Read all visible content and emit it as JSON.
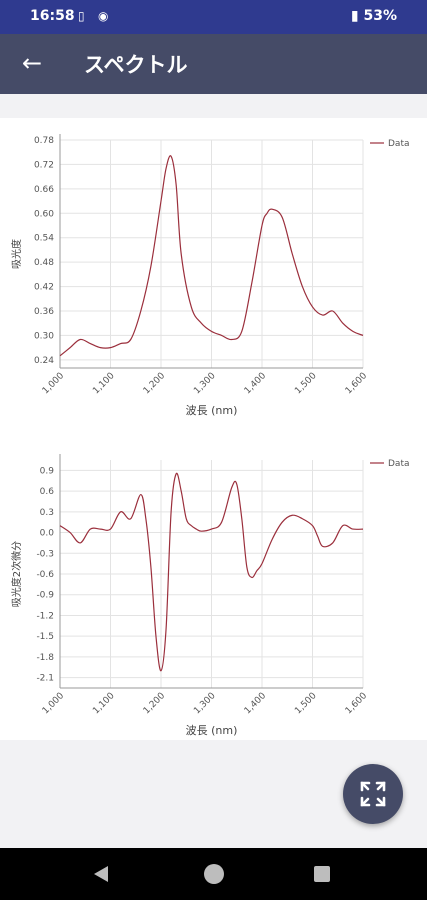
{
  "status_bar": {
    "time": "16:58",
    "battery": "53%"
  },
  "app_bar": {
    "title": "スペクトル"
  },
  "chart_data": [
    {
      "type": "line",
      "xlabel": "波長 (nm)",
      "ylabel": "吸光度",
      "xlim": [
        1000,
        1600
      ],
      "ylim": [
        0.22,
        0.78
      ],
      "x_ticks": [
        "1,000",
        "1,100",
        "1,200",
        "1,300",
        "1,400",
        "1,500",
        "1,600"
      ],
      "y_ticks": [
        "0.78",
        "0.72",
        "0.66",
        "0.60",
        "0.54",
        "0.48",
        "0.42",
        "0.36",
        "0.30",
        "0.24"
      ],
      "legend": "right",
      "grid": true,
      "series": [
        {
          "name": "Data",
          "x": [
            1000,
            1020,
            1040,
            1060,
            1080,
            1100,
            1120,
            1140,
            1160,
            1180,
            1200,
            1210,
            1220,
            1230,
            1240,
            1260,
            1280,
            1300,
            1320,
            1340,
            1360,
            1380,
            1400,
            1410,
            1420,
            1440,
            1460,
            1480,
            1500,
            1520,
            1540,
            1560,
            1580,
            1600
          ],
          "y": [
            0.25,
            0.27,
            0.29,
            0.28,
            0.27,
            0.27,
            0.28,
            0.29,
            0.36,
            0.47,
            0.63,
            0.71,
            0.74,
            0.67,
            0.5,
            0.37,
            0.33,
            0.31,
            0.3,
            0.29,
            0.31,
            0.43,
            0.57,
            0.6,
            0.61,
            0.59,
            0.5,
            0.42,
            0.37,
            0.35,
            0.36,
            0.33,
            0.31,
            0.3
          ]
        }
      ]
    },
    {
      "type": "line",
      "xlabel": "波長 (nm)",
      "ylabel": "吸光度2次微分",
      "xlim": [
        1000,
        1600
      ],
      "ylim": [
        -2.25,
        1.05
      ],
      "x_ticks": [
        "1,000",
        "1,100",
        "1,200",
        "1,300",
        "1,400",
        "1,500",
        "1,600"
      ],
      "y_ticks": [
        "0.9",
        "0.6",
        "0.3",
        "0.0",
        "-0.3",
        "-0.6",
        "-0.9",
        "-1.2",
        "-1.5",
        "-1.8",
        "-2.1"
      ],
      "legend": "right",
      "grid": true,
      "series": [
        {
          "name": "Data",
          "x": [
            1000,
            1020,
            1040,
            1060,
            1080,
            1100,
            1120,
            1140,
            1160,
            1170,
            1180,
            1190,
            1200,
            1210,
            1220,
            1230,
            1240,
            1250,
            1260,
            1270,
            1280,
            1300,
            1320,
            1340,
            1350,
            1360,
            1370,
            1380,
            1390,
            1400,
            1420,
            1440,
            1460,
            1480,
            1500,
            1510,
            1520,
            1540,
            1560,
            1580,
            1600
          ],
          "y": [
            0.1,
            0.0,
            -0.15,
            0.05,
            0.05,
            0.05,
            0.3,
            0.2,
            0.55,
            0.2,
            -0.5,
            -1.5,
            -2.0,
            -1.4,
            0.3,
            0.85,
            0.6,
            0.2,
            0.1,
            0.05,
            0.02,
            0.05,
            0.15,
            0.65,
            0.7,
            0.2,
            -0.5,
            -0.65,
            -0.55,
            -0.45,
            -0.1,
            0.15,
            0.25,
            0.2,
            0.1,
            -0.05,
            -0.2,
            -0.15,
            0.1,
            0.05,
            0.05
          ]
        }
      ]
    }
  ]
}
